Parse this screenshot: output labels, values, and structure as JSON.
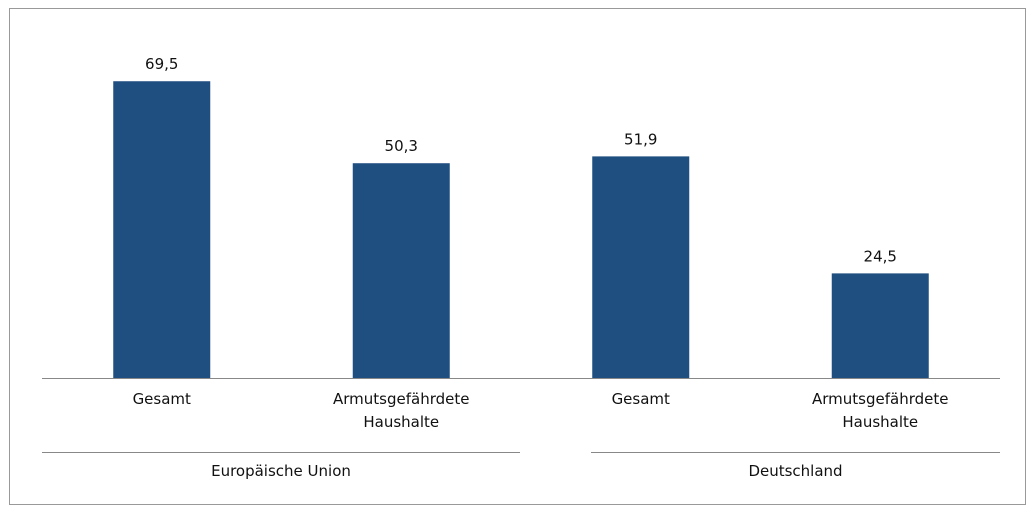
{
  "chart_data": {
    "type": "grouped-bar",
    "color": "#1f4e80",
    "groups": [
      {
        "name": "Europäische Union",
        "categories": [
          "Gesamt",
          "Armutsgefährdete Haushalte"
        ],
        "values": [
          69.5,
          50.3
        ],
        "value_labels": [
          "69,5",
          "50,3"
        ]
      },
      {
        "name": "Deutschland",
        "categories": [
          "Gesamt",
          "Armutsgefährdete Haushalte"
        ],
        "values": [
          51.9,
          24.5
        ],
        "value_labels": [
          "51,9",
          "24,5"
        ]
      }
    ]
  }
}
